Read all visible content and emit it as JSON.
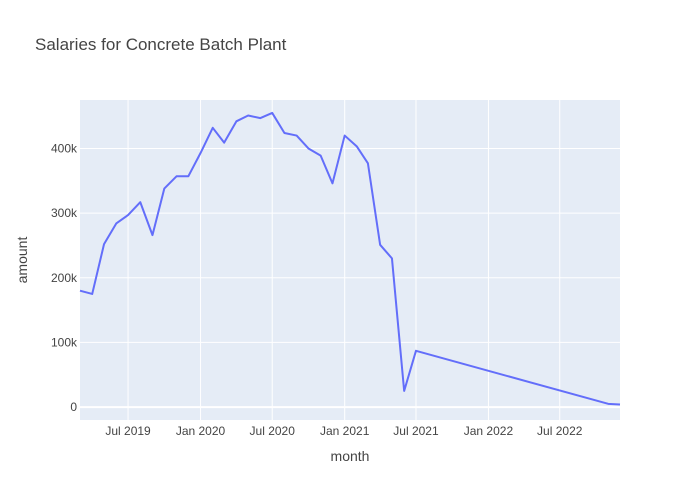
{
  "chart_data": {
    "type": "line",
    "title": "Salaries for Concrete Batch Plant",
    "xlabel": "month",
    "ylabel": "amount",
    "x_range": [
      "2019-03-01",
      "2022-12-01"
    ],
    "ylim": [
      -20000,
      475000
    ],
    "x_ticks": [
      {
        "date": "2019-07-01",
        "label": "Jul 2019"
      },
      {
        "date": "2020-01-01",
        "label": "Jan 2020"
      },
      {
        "date": "2020-07-01",
        "label": "Jul 2020"
      },
      {
        "date": "2021-01-01",
        "label": "Jan 2021"
      },
      {
        "date": "2021-07-01",
        "label": "Jul 2021"
      },
      {
        "date": "2022-01-01",
        "label": "Jan 2022"
      },
      {
        "date": "2022-07-01",
        "label": "Jul 2022"
      }
    ],
    "y_ticks": [
      {
        "value": 0,
        "label": "0"
      },
      {
        "value": 100000,
        "label": "100k"
      },
      {
        "value": 200000,
        "label": "200k"
      },
      {
        "value": 300000,
        "label": "300k"
      },
      {
        "value": 400000,
        "label": "400k"
      }
    ],
    "grid": true,
    "series": [
      {
        "color": "#636efa",
        "points": [
          [
            "2019-03-01",
            180000
          ],
          [
            "2019-04-01",
            175000
          ],
          [
            "2019-05-01",
            252000
          ],
          [
            "2019-06-01",
            284000
          ],
          [
            "2019-07-01",
            297000
          ],
          [
            "2019-08-01",
            317000
          ],
          [
            "2019-09-01",
            266000
          ],
          [
            "2019-10-01",
            338000
          ],
          [
            "2019-11-01",
            357000
          ],
          [
            "2019-12-01",
            357000
          ],
          [
            "2020-01-01",
            393000
          ],
          [
            "2020-02-01",
            432000
          ],
          [
            "2020-03-01",
            409000
          ],
          [
            "2020-04-01",
            442000
          ],
          [
            "2020-05-01",
            451000
          ],
          [
            "2020-06-01",
            447000
          ],
          [
            "2020-07-01",
            455000
          ],
          [
            "2020-08-01",
            424000
          ],
          [
            "2020-09-01",
            420000
          ],
          [
            "2020-10-01",
            400000
          ],
          [
            "2020-11-01",
            389000
          ],
          [
            "2020-12-01",
            346000
          ],
          [
            "2021-01-01",
            420000
          ],
          [
            "2021-02-01",
            403000
          ],
          [
            "2021-03-01",
            377000
          ],
          [
            "2021-04-01",
            251000
          ],
          [
            "2021-05-01",
            230000
          ],
          [
            "2021-06-01",
            25000
          ],
          [
            "2021-07-01",
            87000
          ],
          [
            "2022-11-01",
            5000
          ],
          [
            "2022-12-01",
            4000
          ]
        ]
      }
    ]
  },
  "colors": {
    "plot_background": "#e5ecf6",
    "grid": "#ffffff",
    "line": "#636efa",
    "text": "#444444"
  }
}
